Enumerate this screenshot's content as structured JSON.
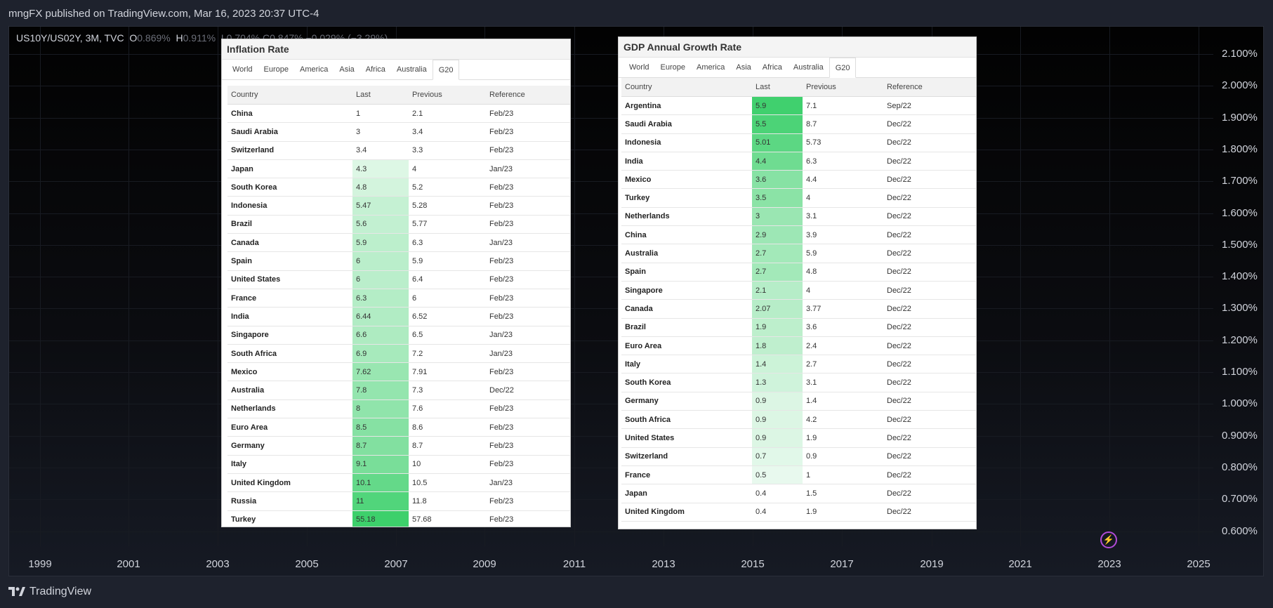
{
  "header": {
    "published": "mngFX published on TradingView.com, Mar 16, 2023 20:37 UTC-4"
  },
  "ticker": {
    "symbol": "US10Y/US02Y, 3M, TVC",
    "o": "O",
    "o_val": "0.869%",
    "h": "H",
    "h_val": "0.911%",
    "rest": "L0.704% C0.847% −0.029% (−3.29%)"
  },
  "y_axis": [
    "2.100%",
    "2.000%",
    "1.900%",
    "1.800%",
    "1.700%",
    "1.600%",
    "1.500%",
    "1.400%",
    "1.300%",
    "1.200%",
    "1.100%",
    "1.000%",
    "0.900%",
    "0.800%",
    "0.700%",
    "0.600%"
  ],
  "x_axis": [
    "1999",
    "2001",
    "2003",
    "2005",
    "2007",
    "2009",
    "2011",
    "2013",
    "2015",
    "2017",
    "2019",
    "2021",
    "2023",
    "2025"
  ],
  "footer": {
    "brand": "TradingView"
  },
  "colors": {
    "green_base": "#2ecc60"
  },
  "inflation": {
    "title": "Inflation Rate",
    "tabs": [
      "World",
      "Europe",
      "America",
      "Asia",
      "Africa",
      "Australia",
      "G20"
    ],
    "headers": [
      "Country",
      "Last",
      "Previous",
      "Reference"
    ],
    "rows": [
      [
        "China",
        "1",
        "2.1",
        "Feb/23"
      ],
      [
        "Saudi Arabia",
        "3",
        "3.4",
        "Feb/23"
      ],
      [
        "Switzerland",
        "3.4",
        "3.3",
        "Feb/23"
      ],
      [
        "Japan",
        "4.3",
        "4",
        "Jan/23"
      ],
      [
        "South Korea",
        "4.8",
        "5.2",
        "Feb/23"
      ],
      [
        "Indonesia",
        "5.47",
        "5.28",
        "Feb/23"
      ],
      [
        "Brazil",
        "5.6",
        "5.77",
        "Feb/23"
      ],
      [
        "Canada",
        "5.9",
        "6.3",
        "Jan/23"
      ],
      [
        "Spain",
        "6",
        "5.9",
        "Feb/23"
      ],
      [
        "United States",
        "6",
        "6.4",
        "Feb/23"
      ],
      [
        "France",
        "6.3",
        "6",
        "Feb/23"
      ],
      [
        "India",
        "6.44",
        "6.52",
        "Feb/23"
      ],
      [
        "Singapore",
        "6.6",
        "6.5",
        "Jan/23"
      ],
      [
        "South Africa",
        "6.9",
        "7.2",
        "Jan/23"
      ],
      [
        "Mexico",
        "7.62",
        "7.91",
        "Feb/23"
      ],
      [
        "Australia",
        "7.8",
        "7.3",
        "Dec/22"
      ],
      [
        "Netherlands",
        "8",
        "7.6",
        "Feb/23"
      ],
      [
        "Euro Area",
        "8.5",
        "8.6",
        "Feb/23"
      ],
      [
        "Germany",
        "8.7",
        "8.7",
        "Feb/23"
      ],
      [
        "Italy",
        "9.1",
        "10",
        "Feb/23"
      ],
      [
        "United Kingdom",
        "10.1",
        "10.5",
        "Jan/23"
      ],
      [
        "Russia",
        "11",
        "11.8",
        "Feb/23"
      ],
      [
        "Turkey",
        "55.18",
        "57.68",
        "Feb/23"
      ]
    ]
  },
  "gdp": {
    "title": "GDP Annual Growth Rate",
    "tabs": [
      "World",
      "Europe",
      "America",
      "Asia",
      "Africa",
      "Australia",
      "G20"
    ],
    "headers": [
      "Country",
      "Last",
      "Previous",
      "Reference"
    ],
    "rows": [
      [
        "Argentina",
        "5.9",
        "7.1",
        "Sep/22"
      ],
      [
        "Saudi Arabia",
        "5.5",
        "8.7",
        "Dec/22"
      ],
      [
        "Indonesia",
        "5.01",
        "5.73",
        "Dec/22"
      ],
      [
        "India",
        "4.4",
        "6.3",
        "Dec/22"
      ],
      [
        "Mexico",
        "3.6",
        "4.4",
        "Dec/22"
      ],
      [
        "Turkey",
        "3.5",
        "4",
        "Dec/22"
      ],
      [
        "Netherlands",
        "3",
        "3.1",
        "Dec/22"
      ],
      [
        "China",
        "2.9",
        "3.9",
        "Dec/22"
      ],
      [
        "Australia",
        "2.7",
        "5.9",
        "Dec/22"
      ],
      [
        "Spain",
        "2.7",
        "4.8",
        "Dec/22"
      ],
      [
        "Singapore",
        "2.1",
        "4",
        "Dec/22"
      ],
      [
        "Canada",
        "2.07",
        "3.77",
        "Dec/22"
      ],
      [
        "Brazil",
        "1.9",
        "3.6",
        "Dec/22"
      ],
      [
        "Euro Area",
        "1.8",
        "2.4",
        "Dec/22"
      ],
      [
        "Italy",
        "1.4",
        "2.7",
        "Dec/22"
      ],
      [
        "South Korea",
        "1.3",
        "3.1",
        "Dec/22"
      ],
      [
        "Germany",
        "0.9",
        "1.4",
        "Dec/22"
      ],
      [
        "South Africa",
        "0.9",
        "4.2",
        "Dec/22"
      ],
      [
        "United States",
        "0.9",
        "1.9",
        "Dec/22"
      ],
      [
        "Switzerland",
        "0.7",
        "0.9",
        "Dec/22"
      ],
      [
        "France",
        "0.5",
        "1",
        "Dec/22"
      ],
      [
        "Japan",
        "0.4",
        "1.5",
        "Dec/22"
      ],
      [
        "United Kingdom",
        "0.4",
        "1.9",
        "Dec/22"
      ]
    ]
  }
}
